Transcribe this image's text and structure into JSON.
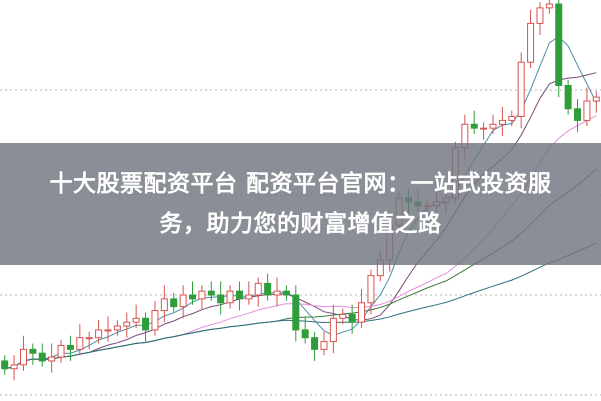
{
  "headline": {
    "line1": "十大股票配资平台 配资平台官网：一站式投资服",
    "line2": "务，助力您的财富增值之路"
  },
  "colors": {
    "up": "#d9534f",
    "down": "#2e9e3a",
    "grid": "#b5b5b5",
    "banner": "#70757f",
    "ma": [
      "#4a90a4",
      "#7a4a7a",
      "#e58fe0",
      "#3a7a3a",
      "#2f6f7f"
    ]
  },
  "chart_data": {
    "type": "candlestick",
    "title": "",
    "grid": "horizontal dotted",
    "ylim": [
      0,
      100
    ],
    "open": [
      8,
      6,
      7,
      11,
      10,
      8,
      9,
      12,
      11,
      14,
      14,
      16,
      16,
      17,
      18,
      19,
      16,
      21,
      24,
      22,
      25,
      24,
      26,
      25,
      23,
      26,
      24,
      25,
      28,
      25,
      26,
      25,
      16,
      14,
      11,
      13,
      19,
      20,
      18,
      23,
      30,
      34,
      43,
      50,
      49,
      48,
      48,
      49,
      50,
      63,
      69,
      68,
      68,
      69,
      70,
      71,
      85,
      95,
      99,
      100,
      79,
      73,
      70,
      75
    ],
    "close": [
      6,
      7,
      11,
      10,
      8,
      9,
      12,
      11,
      14,
      14,
      16,
      16,
      17,
      18,
      19,
      16,
      21,
      24,
      22,
      25,
      24,
      26,
      25,
      23,
      26,
      24,
      25,
      28,
      25,
      26,
      25,
      16,
      14,
      11,
      13,
      19,
      20,
      18,
      23,
      30,
      34,
      43,
      50,
      49,
      48,
      48,
      49,
      50,
      63,
      69,
      68,
      68,
      69,
      70,
      71,
      85,
      95,
      99,
      100,
      79,
      73,
      70,
      75,
      76
    ],
    "moving_averages": [
      5,
      10,
      20,
      30,
      60
    ]
  }
}
